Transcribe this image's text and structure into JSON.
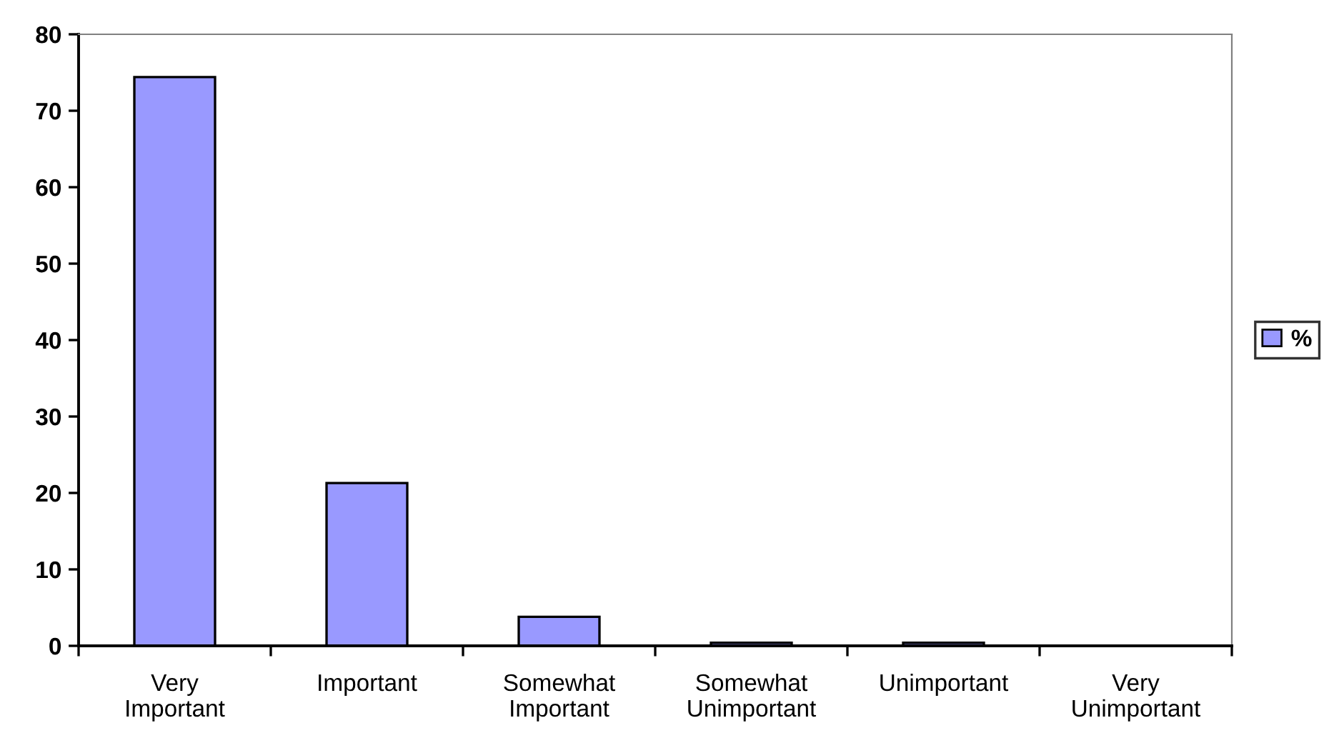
{
  "chart_data": {
    "type": "bar",
    "categories": [
      "Very\nImportant",
      "Important",
      "Somewhat\nImportant",
      "Somewhat\nUnimportant",
      "Unimportant",
      "Very\nUnimportant"
    ],
    "series": [
      {
        "name": "%",
        "color": "#9999ff",
        "values": [
          74.4,
          21.3,
          3.8,
          0.4,
          0.4,
          0
        ]
      }
    ],
    "ylim": [
      0,
      80
    ],
    "yticks": [
      0,
      10,
      20,
      30,
      40,
      50,
      60,
      70,
      80
    ],
    "grid": false,
    "legend": "right"
  }
}
